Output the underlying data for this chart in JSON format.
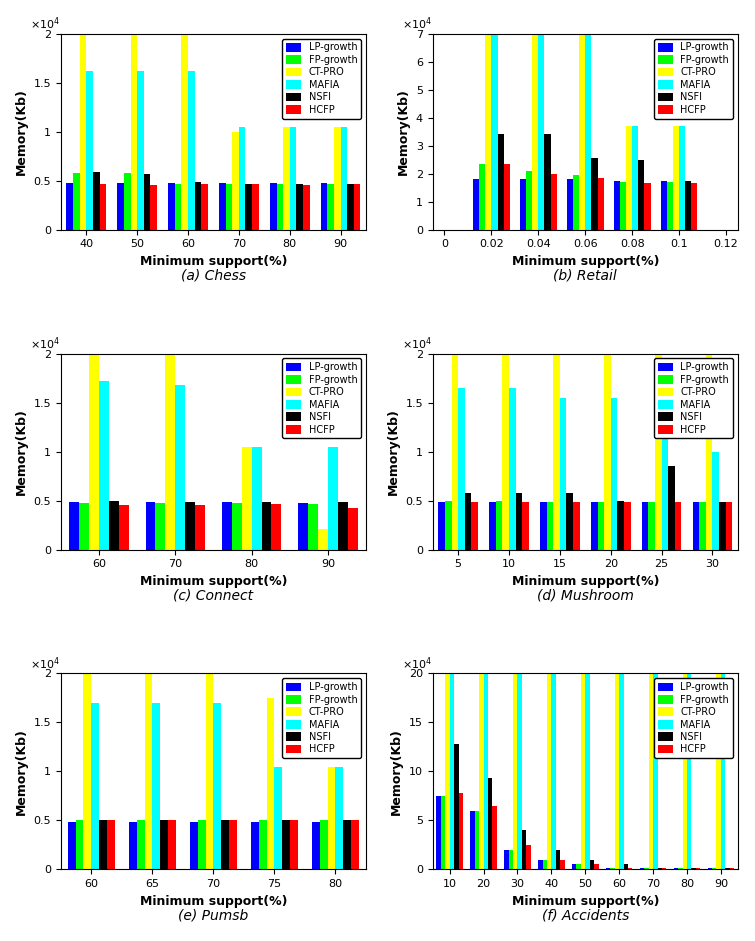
{
  "algorithms": [
    "LP-growth",
    "FP-growth",
    "CT-PRO",
    "MAFIA",
    "NSFI",
    "HCFP"
  ],
  "colors": [
    "blue",
    "lime",
    "yellow",
    "cyan",
    "black",
    "red"
  ],
  "subplots": [
    {
      "title": "(a) Chess",
      "xlabel": "Minimum support(%)",
      "ylabel": "Memory(Kb)",
      "xlabels": [
        "40",
        "50",
        "60",
        "70",
        "80",
        "90"
      ],
      "xvalues": [
        40,
        50,
        60,
        70,
        80,
        90
      ],
      "ylim": [
        0,
        20000
      ],
      "yticks": [
        0,
        5000,
        10000,
        15000,
        20000
      ],
      "ytick_labels": [
        "0",
        "0.5",
        "1",
        "1.5",
        "2"
      ],
      "exp_label": "x10^4",
      "data": [
        [
          4800,
          4800,
          4800,
          4800,
          4800,
          4800
        ],
        [
          5800,
          5800,
          4700,
          4700,
          4700,
          4700
        ],
        [
          20000,
          20000,
          20000,
          10000,
          10500,
          10500
        ],
        [
          16200,
          16200,
          16200,
          10500,
          10500,
          10500
        ],
        [
          5900,
          5700,
          4900,
          4700,
          4700,
          4700
        ],
        [
          4700,
          4600,
          4700,
          4700,
          4600,
          4700
        ]
      ]
    },
    {
      "title": "(b) Retail",
      "xlabel": "Minimum support(%)",
      "ylabel": "Memory(Kb)",
      "xlabels": [
        "0",
        "0.02",
        "0.04",
        "0.06",
        "0.08",
        "0.1",
        "0.12"
      ],
      "xvalues": [
        0.02,
        0.04,
        0.06,
        0.08,
        0.1
      ],
      "xtick_positions": [
        0,
        0.02,
        0.04,
        0.06,
        0.08,
        0.1,
        0.12
      ],
      "ylim": [
        0,
        70000
      ],
      "yticks": [
        0,
        10000,
        20000,
        30000,
        40000,
        50000,
        60000,
        70000
      ],
      "ytick_labels": [
        "0",
        "1",
        "2",
        "3",
        "4",
        "5",
        "6",
        "7"
      ],
      "exp_label": "x10^4",
      "use_real_x": true,
      "xlim": [
        -0.005,
        0.125
      ],
      "data": [
        [
          18000,
          18000,
          18000,
          17500,
          17500
        ],
        [
          23500,
          21000,
          19500,
          17000,
          17000
        ],
        [
          70000,
          70000,
          70000,
          37000,
          37000
        ],
        [
          70000,
          70000,
          70000,
          37000,
          37000
        ],
        [
          34000,
          34000,
          25500,
          25000,
          17500
        ],
        [
          23500,
          20000,
          18500,
          16500,
          16500
        ]
      ]
    },
    {
      "title": "(c) Connect",
      "xlabel": "Minimum support(%)",
      "ylabel": "Memory(Kb)",
      "xlabels": [
        "60",
        "70",
        "80",
        "90"
      ],
      "xvalues": [
        60,
        70,
        80,
        90
      ],
      "ylim": [
        0,
        20000
      ],
      "yticks": [
        0,
        5000,
        10000,
        15000,
        20000
      ],
      "ytick_labels": [
        "0",
        "0.5",
        "1",
        "1.5",
        "2"
      ],
      "exp_label": "x10^4",
      "data": [
        [
          4800,
          4800,
          4800,
          4700
        ],
        [
          4700,
          4700,
          4700,
          4600
        ],
        [
          20000,
          20000,
          10500,
          2100
        ],
        [
          17200,
          16800,
          10500,
          10500
        ],
        [
          5000,
          4900,
          4900,
          4900
        ],
        [
          4500,
          4500,
          4600,
          4200
        ]
      ]
    },
    {
      "title": "(d) Mushroom",
      "xlabel": "Minimum support(%)",
      "ylabel": "Memory(Kb)",
      "xlabels": [
        "5",
        "10",
        "15",
        "20",
        "25",
        "30"
      ],
      "xvalues": [
        5,
        10,
        15,
        20,
        25,
        30
      ],
      "ylim": [
        0,
        20000
      ],
      "yticks": [
        0,
        5000,
        10000,
        15000,
        20000
      ],
      "ytick_labels": [
        "0",
        "0.5",
        "1",
        "1.5",
        "2"
      ],
      "exp_label": "x10^4",
      "data": [
        [
          4900,
          4900,
          4900,
          4900,
          4900,
          4900
        ],
        [
          5000,
          5000,
          4900,
          4900,
          4900,
          4900
        ],
        [
          20000,
          20000,
          20000,
          20000,
          20000,
          20000
        ],
        [
          16500,
          16500,
          15500,
          15500,
          15500,
          10000
        ],
        [
          5800,
          5800,
          5800,
          5000,
          8500,
          4900
        ],
        [
          4800,
          4800,
          4800,
          4800,
          4800,
          4800
        ]
      ]
    },
    {
      "title": "(e) Pumsb",
      "xlabel": "Minimum support(%)",
      "ylabel": "Memory(Kb)",
      "xlabels": [
        "60",
        "65",
        "70",
        "75",
        "80"
      ],
      "xvalues": [
        60,
        65,
        70,
        75,
        80
      ],
      "ylim": [
        0,
        20000
      ],
      "yticks": [
        0,
        5000,
        10000,
        15000,
        20000
      ],
      "ytick_labels": [
        "0",
        "0.5",
        "1",
        "1.5",
        "2"
      ],
      "exp_label": "x10^4",
      "data": [
        [
          4800,
          4800,
          4800,
          4800,
          4800
        ],
        [
          5000,
          5000,
          5000,
          5000,
          5000
        ],
        [
          20000,
          20000,
          20000,
          17500,
          10500
        ],
        [
          17000,
          17000,
          17000,
          10500,
          10500
        ],
        [
          5000,
          5000,
          5000,
          5000,
          5000
        ],
        [
          5000,
          5000,
          5000,
          5000,
          5000
        ]
      ]
    },
    {
      "title": "(f) Accidents",
      "xlabel": "Minimum support(%)",
      "ylabel": "Memory(Kb)",
      "xlabels": [
        "10",
        "20",
        "30",
        "40",
        "50",
        "60",
        "70",
        "80",
        "90"
      ],
      "xvalues": [
        10,
        20,
        30,
        40,
        50,
        60,
        70,
        80,
        90
      ],
      "ylim": [
        0,
        200000
      ],
      "yticks": [
        0,
        50000,
        100000,
        150000,
        200000
      ],
      "ytick_labels": [
        "0",
        "5",
        "10",
        "15",
        "20"
      ],
      "exp_label": "x10^4",
      "data": [
        [
          75000,
          60000,
          20000,
          10000,
          5000,
          1000,
          1000,
          1000,
          1000
        ],
        [
          75000,
          60000,
          20000,
          10000,
          5000,
          1000,
          1000,
          1000,
          1000
        ],
        [
          200000,
          200000,
          200000,
          200000,
          200000,
          200000,
          200000,
          200000,
          200000
        ],
        [
          200000,
          200000,
          200000,
          200000,
          200000,
          200000,
          200000,
          200000,
          200000
        ],
        [
          128000,
          93000,
          40000,
          20000,
          10000,
          5000,
          1000,
          1000,
          1000
        ],
        [
          78000,
          65000,
          25000,
          10000,
          5000,
          1000,
          1000,
          1000,
          1000
        ]
      ]
    }
  ]
}
